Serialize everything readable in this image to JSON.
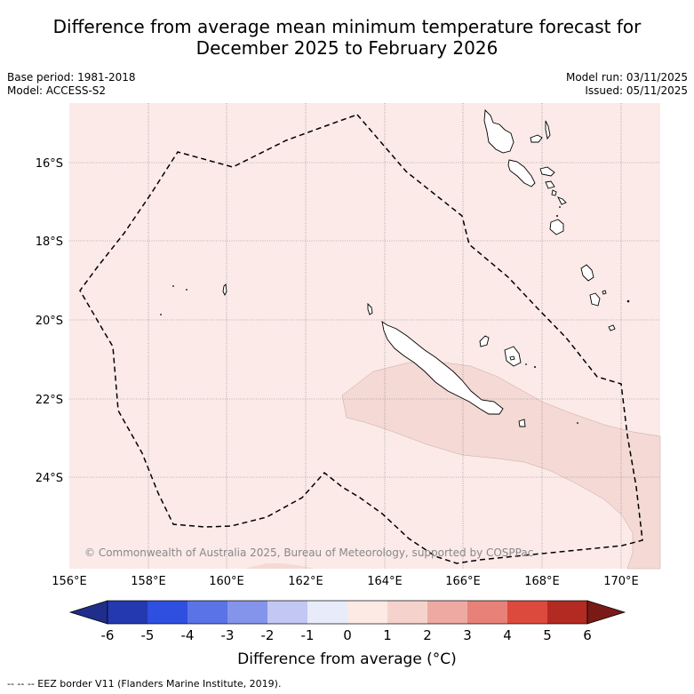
{
  "header": {
    "title_line1": "Difference from average mean minimum temperature forecast for",
    "title_line2": "December 2025 to February 2026",
    "base_period": "Base period: 1981-2018",
    "model": "Model: ACCESS-S2",
    "model_run": "Model run: 03/11/2025",
    "issued": "Issued: 05/11/2025"
  },
  "map": {
    "lat_labels": [
      "16°S",
      "18°S",
      "20°S",
      "22°S",
      "24°S"
    ],
    "lon_labels": [
      "156°E",
      "158°E",
      "160°E",
      "162°E",
      "164°E",
      "166°E",
      "168°E",
      "170°E"
    ],
    "copyright": "© Commonwealth of Australia 2025, Bureau of Meteorology, supported by COSPPac",
    "colors": {
      "background_anomaly": "#fbeae8",
      "warm_anomaly": "#f4d9d5",
      "eez_line": "#000000"
    }
  },
  "colorbar": {
    "ticks": [
      "-6",
      "-5",
      "-4",
      "-3",
      "-2",
      "-1",
      "0",
      "1",
      "2",
      "3",
      "4",
      "5",
      "6"
    ],
    "colors": [
      "#1f2e8a",
      "#2438b0",
      "#2f4fe0",
      "#5a73e6",
      "#8494ea",
      "#c2c8f3",
      "#e8ebfa",
      "#fdeae5",
      "#f5d3cc",
      "#eeaaa2",
      "#e88177",
      "#dc4a3e",
      "#b22a22",
      "#7a1a16"
    ],
    "label": "Difference from average (°C)"
  },
  "footer": {
    "legend": "--  --  -- EEZ border V11 (Flanders Marine Institute, 2019)."
  }
}
